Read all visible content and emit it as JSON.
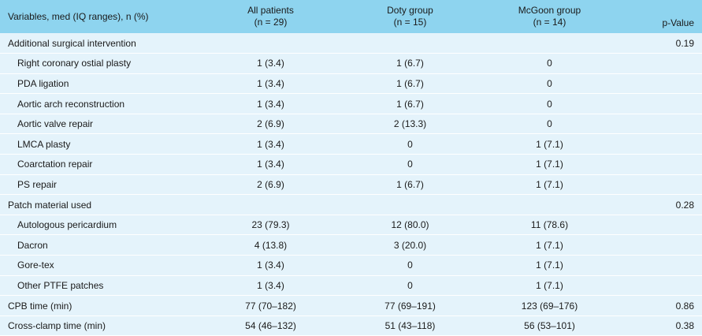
{
  "header": {
    "variables": "Variables, med (IQ ranges), n (%)",
    "all_patients": "All patients",
    "all_patients_n": "(n = 29)",
    "doty": "Doty group",
    "doty_n": "(n = 15)",
    "mcgoon": "McGoon group",
    "mcgoon_n": "(n = 14)",
    "pvalue": "p-Value"
  },
  "rows": [
    {
      "label": "Additional surgical intervention",
      "all": "",
      "doty": "",
      "mcgoon": "",
      "p": "0.19",
      "sub": false
    },
    {
      "label": "Right coronary ostial plasty",
      "all": "1 (3.4)",
      "doty": "1 (6.7)",
      "mcgoon": "0",
      "p": "",
      "sub": true
    },
    {
      "label": "PDA ligation",
      "all": "1 (3.4)",
      "doty": "1 (6.7)",
      "mcgoon": "0",
      "p": "",
      "sub": true
    },
    {
      "label": "Aortic arch reconstruction",
      "all": "1 (3.4)",
      "doty": "1 (6.7)",
      "mcgoon": "0",
      "p": "",
      "sub": true
    },
    {
      "label": "Aortic valve repair",
      "all": "2 (6.9)",
      "doty": "2 (13.3)",
      "mcgoon": "0",
      "p": "",
      "sub": true
    },
    {
      "label": "LMCA plasty",
      "all": "1 (3.4)",
      "doty": "0",
      "mcgoon": "1 (7.1)",
      "p": "",
      "sub": true
    },
    {
      "label": "Coarctation repair",
      "all": "1 (3.4)",
      "doty": "0",
      "mcgoon": "1 (7.1)",
      "p": "",
      "sub": true
    },
    {
      "label": "PS repair",
      "all": "2 (6.9)",
      "doty": "1 (6.7)",
      "mcgoon": "1 (7.1)",
      "p": "",
      "sub": true
    },
    {
      "label": "Patch material used",
      "all": "",
      "doty": "",
      "mcgoon": "",
      "p": "0.28",
      "sub": false
    },
    {
      "label": "Autologous pericardium",
      "all": "23 (79.3)",
      "doty": "12 (80.0)",
      "mcgoon": "11 (78.6)",
      "p": "",
      "sub": true
    },
    {
      "label": "Dacron",
      "all": "4 (13.8)",
      "doty": "3 (20.0)",
      "mcgoon": "1 (7.1)",
      "p": "",
      "sub": true
    },
    {
      "label": "Gore-tex",
      "all": "1 (3.4)",
      "doty": "0",
      "mcgoon": "1 (7.1)",
      "p": "",
      "sub": true
    },
    {
      "label": "Other PTFE patches",
      "all": "1 (3.4)",
      "doty": "0",
      "mcgoon": "1 (7.1)",
      "p": "",
      "sub": true
    },
    {
      "label": "CPB time (min)",
      "all": "77 (70–182)",
      "doty": "77 (69–191)",
      "mcgoon": "123 (69–176)",
      "p": "0.86",
      "sub": false
    },
    {
      "label": "Cross-clamp time (min)",
      "all": "54 (46–132)",
      "doty": "51 (43–118)",
      "mcgoon": "56 (53–101)",
      "p": "0.38",
      "sub": false
    }
  ]
}
